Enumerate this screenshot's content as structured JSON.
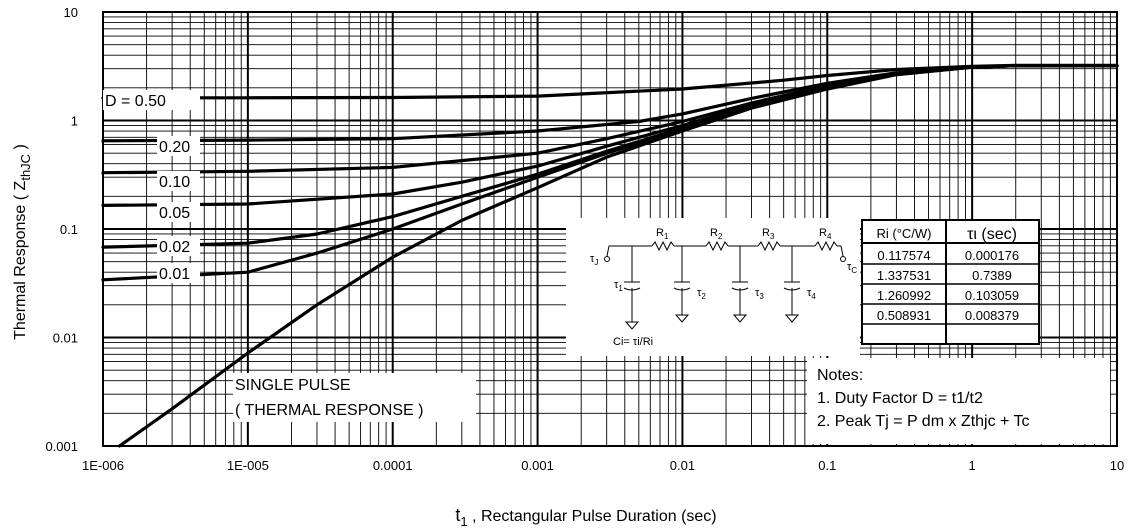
{
  "chart_data": {
    "type": "line",
    "x_scale": "log",
    "y_scale": "log",
    "xlim": [
      1e-06,
      10
    ],
    "ylim": [
      0.001,
      10
    ],
    "grid": true,
    "xlabel_prefix": "t",
    "xlabel_sub": "1",
    "xlabel_rest": " , Rectangular Pulse Duration (sec)",
    "ylabel_prefix": "Thermal Response ( Z",
    "ylabel_sub": "thJC",
    "ylabel_suffix": " )",
    "x_ticks": [
      {
        "value": 1e-06,
        "label": "1E-006"
      },
      {
        "value": 1e-05,
        "label": "1E-005"
      },
      {
        "value": 0.0001,
        "label": "0.0001"
      },
      {
        "value": 0.001,
        "label": "0.001"
      },
      {
        "value": 0.01,
        "label": "0.01"
      },
      {
        "value": 0.1,
        "label": "0.1"
      },
      {
        "value": 1,
        "label": "1"
      },
      {
        "value": 10,
        "label": "10"
      }
    ],
    "y_ticks": [
      {
        "value": 0.001,
        "label": "0.001"
      },
      {
        "value": 0.01,
        "label": "0.01"
      },
      {
        "value": 0.1,
        "label": "0.1"
      },
      {
        "value": 1,
        "label": "1"
      },
      {
        "value": 10,
        "label": "10"
      }
    ],
    "series": [
      {
        "name": "D = 0.50",
        "x": [
          1e-06,
          1e-05,
          0.0001,
          0.001,
          0.01,
          0.05,
          0.1,
          0.3,
          1,
          2,
          10
        ],
        "y": [
          1.62,
          1.62,
          1.63,
          1.68,
          1.95,
          2.35,
          2.6,
          2.95,
          3.15,
          3.22,
          3.22
        ]
      },
      {
        "name": "0.20",
        "x": [
          1e-06,
          1e-05,
          0.0001,
          0.001,
          0.005,
          0.01,
          0.03,
          0.1,
          0.3,
          1,
          2,
          10
        ],
        "y": [
          0.65,
          0.66,
          0.68,
          0.8,
          0.98,
          1.15,
          1.6,
          2.2,
          2.75,
          3.1,
          3.2,
          3.2
        ]
      },
      {
        "name": "0.10",
        "x": [
          1e-06,
          1e-05,
          0.0001,
          0.001,
          0.003,
          0.01,
          0.03,
          0.1,
          0.3,
          1,
          2,
          10
        ],
        "y": [
          0.33,
          0.34,
          0.37,
          0.5,
          0.68,
          0.98,
          1.45,
          2.1,
          2.72,
          3.1,
          3.2,
          3.2
        ]
      },
      {
        "name": "0.05",
        "x": [
          1e-06,
          1e-05,
          0.0001,
          0.0003,
          0.001,
          0.003,
          0.01,
          0.03,
          0.1,
          0.3,
          1,
          2,
          10
        ],
        "y": [
          0.165,
          0.17,
          0.21,
          0.27,
          0.38,
          0.58,
          0.9,
          1.4,
          2.05,
          2.7,
          3.1,
          3.2,
          3.2
        ]
      },
      {
        "name": "0.02",
        "x": [
          1e-06,
          1e-05,
          3e-05,
          0.0001,
          0.0003,
          0.001,
          0.003,
          0.01,
          0.03,
          0.1,
          0.3,
          1,
          2,
          10
        ],
        "y": [
          0.068,
          0.074,
          0.09,
          0.13,
          0.2,
          0.32,
          0.52,
          0.85,
          1.35,
          2.0,
          2.68,
          3.1,
          3.2,
          3.2
        ]
      },
      {
        "name": "0.01",
        "x": [
          1e-06,
          1e-05,
          3e-05,
          0.0001,
          0.0003,
          0.001,
          0.003,
          0.01,
          0.03,
          0.1,
          0.3,
          1,
          2,
          10
        ],
        "y": [
          0.034,
          0.04,
          0.06,
          0.1,
          0.17,
          0.3,
          0.5,
          0.83,
          1.32,
          1.98,
          2.65,
          3.1,
          3.2,
          3.2
        ]
      },
      {
        "name": "SINGLE PULSE ( THERMAL RESPONSE )",
        "x": [
          1.3e-06,
          3e-06,
          1e-05,
          3e-05,
          0.0001,
          0.0003,
          0.001,
          0.003,
          0.01,
          0.03,
          0.1,
          0.3,
          1,
          2,
          10
        ],
        "y": [
          0.001,
          0.0022,
          0.0072,
          0.02,
          0.055,
          0.12,
          0.24,
          0.46,
          0.8,
          1.3,
          1.95,
          2.65,
          3.1,
          3.2,
          3.2
        ]
      }
    ],
    "annotations": {
      "d50": "D = 0.50",
      "d20": "0.20",
      "d10": "0.10",
      "d05": "0.05",
      "d02": "0.02",
      "d01": "0.01",
      "single_line1": "SINGLE PULSE",
      "single_line2": "( THERMAL RESPONSE )"
    },
    "notes": {
      "title": "Notes:",
      "line1": "1. Duty Factor D = t1/t2",
      "line2": "2. Peak Tj = P dm x Zthjc + Tc"
    },
    "rc_table": {
      "headers": [
        "Ri (°C/W)",
        "τι (sec)"
      ],
      "rows": [
        [
          "0.117574",
          "0.000176"
        ],
        [
          "1.337531",
          "0.7389"
        ],
        [
          "1.260992",
          "0.103059"
        ],
        [
          "0.508931",
          "0.008379"
        ]
      ]
    },
    "circuit": {
      "tau_j": "τ",
      "tau_j_sub": "J",
      "tau_c": "τ",
      "tau_c_sub": "C",
      "resistors": [
        {
          "label": "R",
          "sub": "1"
        },
        {
          "label": "R",
          "sub": "2"
        },
        {
          "label": "R",
          "sub": "3"
        },
        {
          "label": "R",
          "sub": "4"
        }
      ],
      "caps": [
        {
          "label": "τ",
          "sub": "1"
        },
        {
          "label": "τ",
          "sub": "2"
        },
        {
          "label": "τ",
          "sub": "3"
        },
        {
          "label": "τ",
          "sub": "4"
        }
      ],
      "formula": "Ci= τi/Ri"
    }
  }
}
